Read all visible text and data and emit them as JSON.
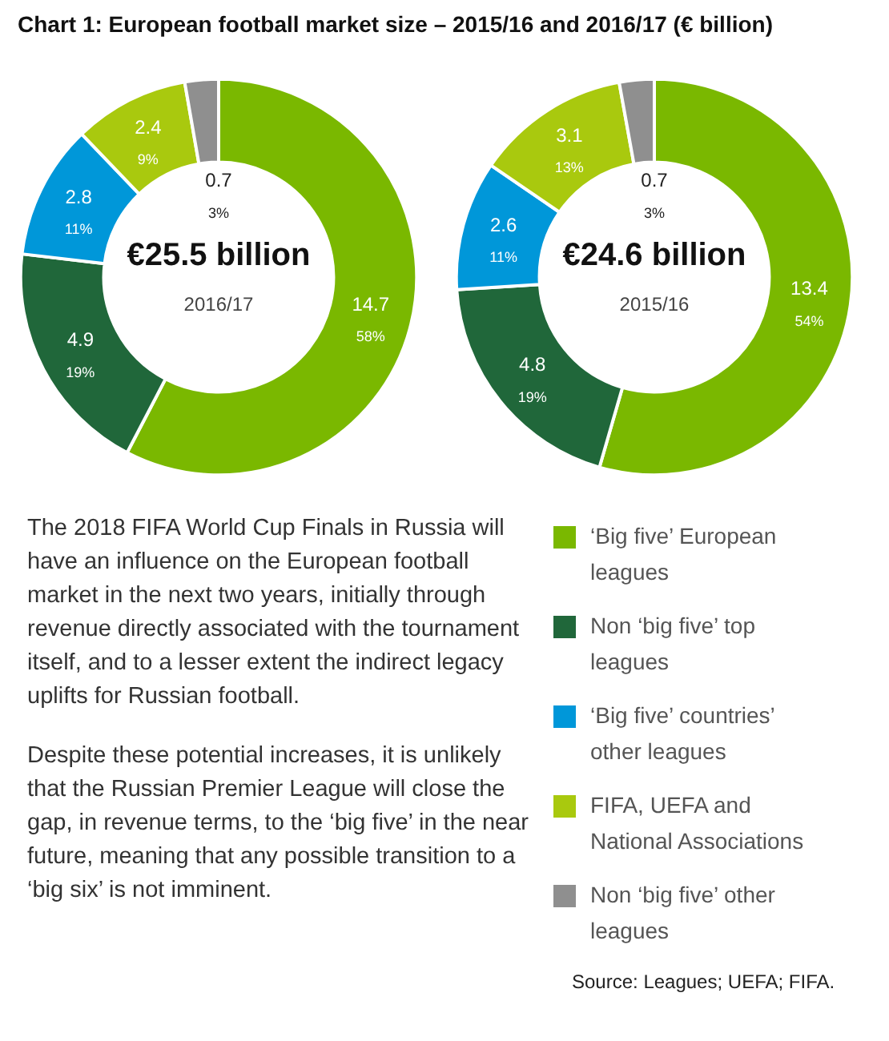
{
  "chart_data": [
    {
      "type": "donut",
      "title": "Chart 1: European football market size – 2015/16 and 2016/17 (€ billion)",
      "categories": [
        "‘Big five’ European leagues",
        "Non ‘big five’ top leagues",
        "‘Big five’ countries’ other leagues",
        "FIFA, UEFA and National Associations",
        "Non ‘big five’ other leagues"
      ],
      "values": [
        14.7,
        4.9,
        2.8,
        2.4,
        0.7
      ],
      "value_labels": [
        "14.7\n58%",
        "4.9\n19%",
        "2.8\n11%",
        "2.4\n9%",
        "0.7\n3%"
      ],
      "colors": [
        "#7ab800",
        "#20673a",
        "#0097d9",
        "#a9c90e",
        "#8f8f8f"
      ],
      "annotations": [
        "€25.5 billion",
        "2016/17"
      ],
      "legend": "bottom right"
    },
    {
      "type": "donut",
      "values": [
        13.4,
        4.8,
        2.6,
        3.1,
        0.7
      ],
      "value_labels": [
        "13.4\n54%",
        "4.8\n19%",
        "2.6\n11%",
        "3.1\n13%",
        "0.7\n3%"
      ],
      "colors": [
        "#7ab800",
        "#20673a",
        "#0097d9",
        "#a9c90e",
        "#8f8f8f"
      ],
      "annotations": [
        "€24.6 billion",
        "2015/16"
      ]
    },
    {
      "type": "other",
      "annotations": [
        "The 2018 FIFA World Cup Finals in Russia will have an influence on the European football market in the next two years, initially through revenue directly associated with the tournament itself, and to a lesser extent the indirect legacy uplifts for Russian football.",
        "Despite these potential increases, it is unlikely that the Russian Premier League will close the gap, in revenue terms, to the ‘big five’ in the near future, meaning that any possible transition to a ‘big six’ is not imminent.",
        "Source: Leagues; UEFA; FIFA."
      ]
    }
  ]
}
